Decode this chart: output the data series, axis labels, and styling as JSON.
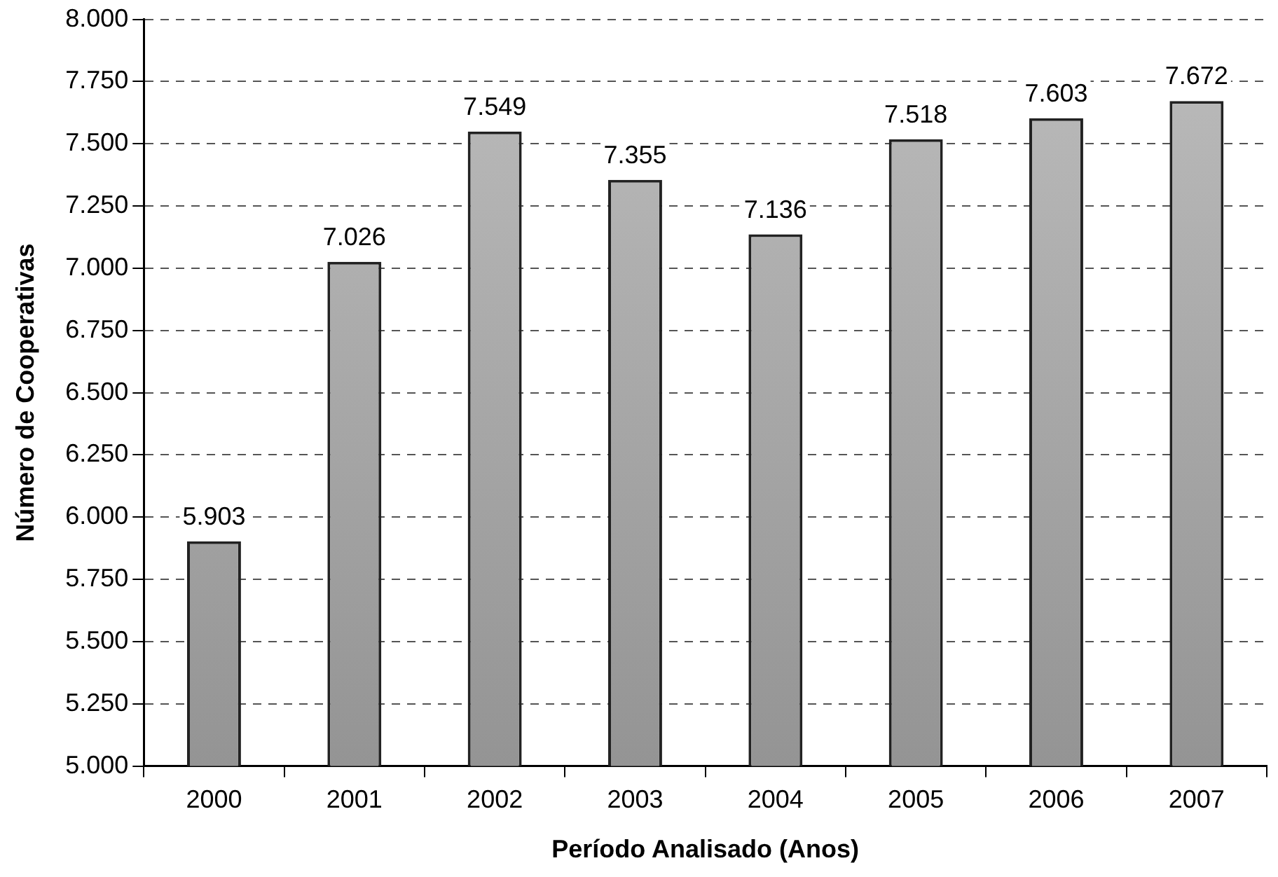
{
  "chart_data": {
    "type": "bar",
    "xlabel": "Período Analisado (Anos)",
    "ylabel": "Número de Cooperativas",
    "categories": [
      "2000",
      "2001",
      "2002",
      "2003",
      "2004",
      "2005",
      "2006",
      "2007"
    ],
    "values": [
      5903,
      7026,
      7549,
      7355,
      7136,
      7518,
      7603,
      7672
    ],
    "value_labels": [
      "5.903",
      "7.026",
      "7.549",
      "7.355",
      "7.136",
      "7.518",
      "7.603",
      "7.672"
    ],
    "color": "#a8a8a8",
    "ylim": [
      5000,
      8000
    ],
    "yticks": [
      {
        "value": 5000,
        "label": "5.000"
      },
      {
        "value": 5250,
        "label": "5.250"
      },
      {
        "value": 5500,
        "label": "5.500"
      },
      {
        "value": 5750,
        "label": "5.750"
      },
      {
        "value": 6000,
        "label": "6.000"
      },
      {
        "value": 6250,
        "label": "6.250"
      },
      {
        "value": 6500,
        "label": "6.500"
      },
      {
        "value": 6750,
        "label": "6.750"
      },
      {
        "value": 7000,
        "label": "7.000"
      },
      {
        "value": 7250,
        "label": "7.250"
      },
      {
        "value": 7500,
        "label": "7.500"
      },
      {
        "value": 7750,
        "label": "7.750"
      },
      {
        "value": 8000,
        "label": "8.000"
      }
    ],
    "grid": "y",
    "legend": false
  }
}
